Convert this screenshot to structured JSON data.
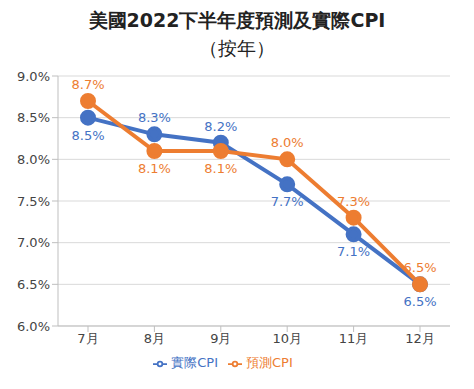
{
  "chart_data": {
    "type": "line",
    "title": "美國2022下半年度預測及實際CPI",
    "subtitle": "（按年）",
    "categories": [
      "7月",
      "8月",
      "9月",
      "10月",
      "11月",
      "12月"
    ],
    "series": [
      {
        "name": "實際CPI",
        "color": "#4472c4",
        "marker": "circle",
        "values": [
          8.5,
          8.3,
          8.2,
          7.7,
          7.1,
          6.5
        ],
        "value_labels": [
          "8.5%",
          "8.3%",
          "8.2%",
          "7.7%",
          "7.1%",
          "6.5%"
        ]
      },
      {
        "name": "預測CPI",
        "color": "#ed7d31",
        "marker": "circle",
        "values": [
          8.7,
          8.1,
          8.1,
          8.0,
          7.3,
          6.5
        ],
        "value_labels": [
          "8.7%",
          "8.1%",
          "8.1%",
          "8.0%",
          "7.3%",
          "6.5%"
        ]
      }
    ],
    "ylim": [
      6.0,
      9.0
    ],
    "yticks": [
      {
        "value": 6.0,
        "label": "6.0%"
      },
      {
        "value": 6.5,
        "label": "6.5%"
      },
      {
        "value": 7.0,
        "label": "7.0%"
      },
      {
        "value": 7.5,
        "label": "7.5%"
      },
      {
        "value": 8.0,
        "label": "8.0%"
      },
      {
        "value": 8.5,
        "label": "8.5%"
      },
      {
        "value": 9.0,
        "label": "9.0%"
      }
    ],
    "grid": true,
    "legend": "bottom",
    "data_labels": true
  }
}
